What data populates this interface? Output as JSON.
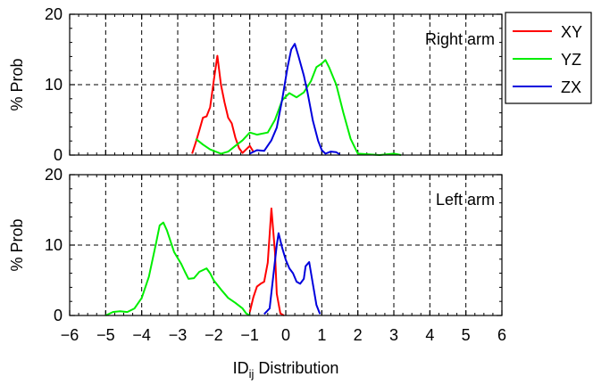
{
  "chart_data": [
    {
      "type": "line",
      "panel_label": "Right arm",
      "ylabel": "% Prob",
      "xlabel": "",
      "xlim": [
        -6,
        6
      ],
      "ylim": [
        0,
        20
      ],
      "xticks": [
        "−6",
        "−5",
        "−4",
        "−3",
        "−2",
        "−1",
        "0",
        "1",
        "2",
        "3",
        "4",
        "5",
        "6"
      ],
      "yticks": [
        "0",
        "10",
        "20"
      ],
      "grid": true,
      "series": [
        {
          "name": "XY",
          "color": "#ff0000",
          "points": [
            [
              -2.6,
              0.2
            ],
            [
              -2.5,
              1.8
            ],
            [
              -2.4,
              3.5
            ],
            [
              -2.3,
              5.3
            ],
            [
              -2.2,
              5.5
            ],
            [
              -2.1,
              6.8
            ],
            [
              -2.0,
              10.5
            ],
            [
              -1.9,
              14.1
            ],
            [
              -1.8,
              10.0
            ],
            [
              -1.7,
              7.5
            ],
            [
              -1.6,
              5.3
            ],
            [
              -1.5,
              4.5
            ],
            [
              -1.4,
              2.5
            ],
            [
              -1.3,
              1.0
            ],
            [
              -1.2,
              0.3
            ],
            [
              -1.1,
              0.8
            ],
            [
              -1.0,
              1.3
            ],
            [
              -0.9,
              0.5
            ]
          ]
        },
        {
          "name": "YZ",
          "color": "#00ee00",
          "points": [
            [
              -2.5,
              2.3
            ],
            [
              -2.3,
              1.5
            ],
            [
              -2.1,
              0.8
            ],
            [
              -1.8,
              0.2
            ],
            [
              -1.6,
              0.5
            ],
            [
              -1.4,
              1.3
            ],
            [
              -1.2,
              2.1
            ],
            [
              -1.0,
              3.2
            ],
            [
              -0.8,
              2.9
            ],
            [
              -0.5,
              3.2
            ],
            [
              -0.3,
              5.0
            ],
            [
              -0.1,
              7.8
            ],
            [
              0.1,
              8.8
            ],
            [
              0.3,
              8.2
            ],
            [
              0.5,
              8.9
            ],
            [
              0.7,
              10.5
            ],
            [
              0.85,
              12.5
            ],
            [
              1.0,
              13.0
            ],
            [
              1.1,
              13.5
            ],
            [
              1.2,
              12.5
            ],
            [
              1.4,
              10.0
            ],
            [
              1.6,
              6.0
            ],
            [
              1.8,
              2.3
            ],
            [
              2.0,
              0.2
            ],
            [
              2.6,
              0.0
            ],
            [
              3.0,
              0.2
            ],
            [
              3.2,
              0.0
            ]
          ]
        },
        {
          "name": "ZX",
          "color": "#0000dd",
          "points": [
            [
              -1.0,
              0.2
            ],
            [
              -0.8,
              0.7
            ],
            [
              -0.6,
              0.6
            ],
            [
              -0.4,
              2.1
            ],
            [
              -0.25,
              3.9
            ],
            [
              -0.1,
              7.9
            ],
            [
              0.05,
              12.5
            ],
            [
              0.15,
              15.0
            ],
            [
              0.25,
              15.8
            ],
            [
              0.35,
              14.1
            ],
            [
              0.5,
              11.3
            ],
            [
              0.6,
              9.0
            ],
            [
              0.75,
              4.9
            ],
            [
              0.9,
              2.0
            ],
            [
              1.0,
              0.7
            ],
            [
              1.1,
              0.2
            ],
            [
              1.25,
              0.5
            ],
            [
              1.4,
              0.4
            ],
            [
              1.5,
              0.1
            ]
          ]
        }
      ]
    },
    {
      "type": "line",
      "panel_label": "Left arm",
      "ylabel": "% Prob",
      "xlabel": "ID_ij Distribution",
      "xlim": [
        -6,
        6
      ],
      "ylim": [
        0,
        20
      ],
      "xticks": [
        "−6",
        "−5",
        "−4",
        "−3",
        "−2",
        "−1",
        "0",
        "1",
        "2",
        "3",
        "4",
        "5",
        "6"
      ],
      "yticks": [
        "0",
        "10",
        "20"
      ],
      "grid": true,
      "series": [
        {
          "name": "XY",
          "color": "#ff0000",
          "points": [
            [
              -1.0,
              0.5
            ],
            [
              -0.9,
              2.6
            ],
            [
              -0.8,
              4.1
            ],
            [
              -0.7,
              4.5
            ],
            [
              -0.6,
              4.8
            ],
            [
              -0.5,
              7.5
            ],
            [
              -0.4,
              15.2
            ],
            [
              -0.3,
              9.0
            ],
            [
              -0.25,
              3.1
            ],
            [
              -0.15,
              0.3
            ],
            [
              -0.05,
              0.0
            ]
          ]
        },
        {
          "name": "YZ",
          "color": "#00ee00",
          "points": [
            [
              -5.0,
              0.0
            ],
            [
              -4.8,
              0.5
            ],
            [
              -4.6,
              0.6
            ],
            [
              -4.4,
              0.5
            ],
            [
              -4.2,
              1.0
            ],
            [
              -4.0,
              2.5
            ],
            [
              -3.8,
              5.5
            ],
            [
              -3.6,
              10.3
            ],
            [
              -3.5,
              12.8
            ],
            [
              -3.4,
              13.2
            ],
            [
              -3.3,
              12.1
            ],
            [
              -3.1,
              9.0
            ],
            [
              -2.9,
              7.3
            ],
            [
              -2.8,
              6.2
            ],
            [
              -2.7,
              5.2
            ],
            [
              -2.55,
              5.3
            ],
            [
              -2.4,
              6.2
            ],
            [
              -2.2,
              6.7
            ],
            [
              -2.1,
              6.0
            ],
            [
              -2.0,
              5.0
            ],
            [
              -1.8,
              3.7
            ],
            [
              -1.6,
              2.5
            ],
            [
              -1.4,
              1.8
            ],
            [
              -1.2,
              1.0
            ],
            [
              -1.1,
              0.3
            ],
            [
              -1.0,
              0.0
            ]
          ]
        },
        {
          "name": "ZX",
          "color": "#0000dd",
          "points": [
            [
              -0.6,
              0.2
            ],
            [
              -0.45,
              1.0
            ],
            [
              -0.35,
              5.5
            ],
            [
              -0.25,
              10.0
            ],
            [
              -0.2,
              11.7
            ],
            [
              -0.1,
              9.6
            ],
            [
              0.0,
              7.9
            ],
            [
              0.1,
              6.7
            ],
            [
              0.2,
              6.0
            ],
            [
              0.3,
              4.8
            ],
            [
              0.4,
              4.5
            ],
            [
              0.5,
              5.2
            ],
            [
              0.55,
              7.0
            ],
            [
              0.65,
              7.6
            ],
            [
              0.75,
              4.5
            ],
            [
              0.85,
              1.5
            ],
            [
              0.95,
              0.2
            ]
          ]
        }
      ]
    }
  ],
  "legend": [
    {
      "label": "XY",
      "color": "#ff0000"
    },
    {
      "label": "YZ",
      "color": "#00ee00"
    },
    {
      "label": "ZX",
      "color": "#0000dd"
    }
  ],
  "xlabel_parts": {
    "main": "ID",
    "sub": "ij",
    "rest": " Distribution"
  }
}
